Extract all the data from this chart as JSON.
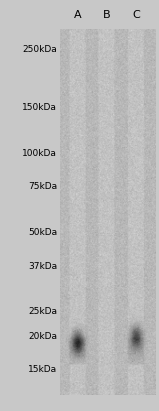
{
  "fig_width": 1.59,
  "fig_height": 4.11,
  "dpi": 100,
  "bg_color": "#c8c8c8",
  "lane_labels": [
    "A",
    "B",
    "C"
  ],
  "marker_labels": [
    "250kDa",
    "150kDa",
    "100kDa",
    "75kDa",
    "50kDa",
    "37kDa",
    "25kDa",
    "20kDa",
    "15kDa"
  ],
  "marker_kda": [
    250,
    150,
    100,
    75,
    50,
    37,
    25,
    20,
    15
  ],
  "band_lane": [
    0,
    2
  ],
  "band_kda": [
    19,
    20
  ],
  "band_intensity_A": 0.85,
  "band_intensity_C": 0.75,
  "lane_colors": [
    "#b0b0b0",
    "#b8b8b8",
    "#b8b8b8"
  ],
  "text_color": "#000000",
  "label_fontsize": 6.5,
  "lane_label_fontsize": 8
}
